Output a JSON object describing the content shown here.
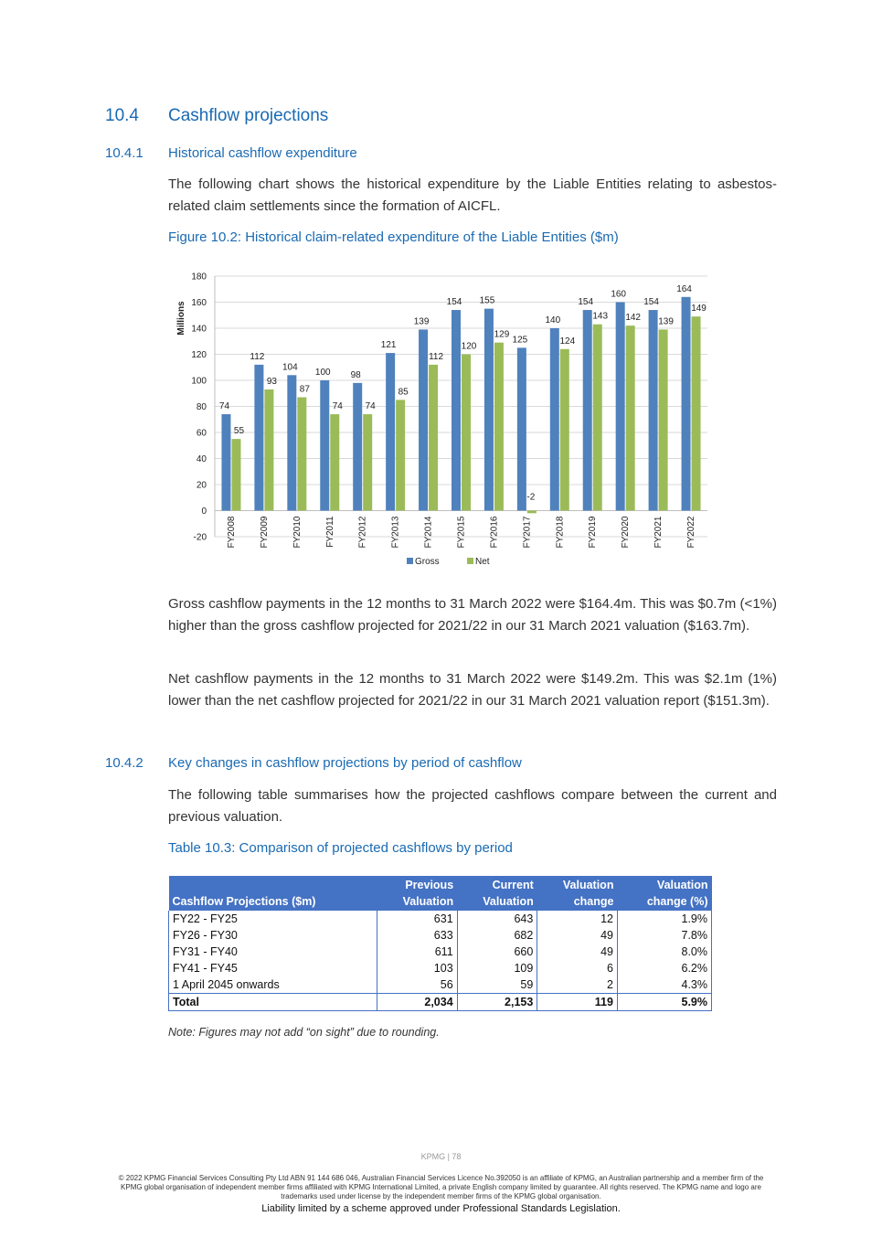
{
  "section": {
    "number": "10.4",
    "title": "Cashflow projections"
  },
  "sub1": {
    "number": "10.4.1",
    "title": "Historical cashflow expenditure",
    "intro": "The following chart shows the historical expenditure by the Liable Entities relating to asbestos-related claim settlements since the formation of AICFL.",
    "figure_caption": "Figure 10.2: Historical claim-related expenditure of the Liable Entities ($m)",
    "para2": "Gross cashflow payments in the 12 months to 31 March 2022 were $164.4m. This was $0.7m (<1%) higher than the gross cashflow projected for 2021/22 in our 31 March 2021 valuation ($163.7m).",
    "para3": "Net cashflow payments in the 12 months to 31 March 2022 were $149.2m. This was $2.1m (1%) lower than the net cashflow projected for 2021/22 in our 31 March 2021 valuation report ($151.3m)."
  },
  "chart_data": {
    "type": "bar",
    "title": "",
    "ylabel": "Millions",
    "xlabel": "",
    "ylim": [
      -20,
      180
    ],
    "yticks": [
      -20,
      0,
      20,
      40,
      60,
      80,
      100,
      120,
      140,
      160,
      180
    ],
    "grid": true,
    "legend_position": "bottom",
    "categories": [
      "FY2008",
      "FY2009",
      "FY2010",
      "FY2011",
      "FY2012",
      "FY2013",
      "FY2014",
      "FY2015",
      "FY2016",
      "FY2017",
      "FY2018",
      "FY2019",
      "FY2020",
      "FY2021",
      "FY2022"
    ],
    "series": [
      {
        "name": "Gross",
        "color": "#4f81bd",
        "values": [
          74,
          112,
          104,
          100,
          98,
          121,
          139,
          154,
          155,
          125,
          140,
          154,
          160,
          154,
          164
        ]
      },
      {
        "name": "Net",
        "color": "#9bbb59",
        "values": [
          55,
          93,
          87,
          74,
          74,
          85,
          112,
          120,
          129,
          -2,
          124,
          143,
          142,
          139,
          149
        ]
      }
    ],
    "negative_label_color": "#e00000"
  },
  "sub2": {
    "number": "10.4.2",
    "title": "Key changes in cashflow projections by period of cashflow",
    "intro": "The following table summarises how the projected cashflows compare between the current and previous valuation.",
    "table_caption": "Table 10.3: Comparison of projected cashflows by period",
    "table": {
      "headers": [
        {
          "line1": "",
          "line2": "Cashflow Projections ($m)"
        },
        {
          "line1": "Previous",
          "line2": "Valuation"
        },
        {
          "line1": "Current",
          "line2": "Valuation"
        },
        {
          "line1": "Valuation",
          "line2": "change"
        },
        {
          "line1": "Valuation",
          "line2": "change (%)"
        }
      ],
      "rows": [
        [
          "FY22 - FY25",
          "631",
          "643",
          "12",
          "1.9%"
        ],
        [
          "FY26 - FY30",
          "633",
          "682",
          "49",
          "7.8%"
        ],
        [
          "FY31 - FY40",
          "611",
          "660",
          "49",
          "8.0%"
        ],
        [
          "FY41 - FY45",
          "103",
          "109",
          "6",
          "6.2%"
        ],
        [
          "1 April 2045 onwards",
          "56",
          "59",
          "2",
          "4.3%"
        ]
      ],
      "total": [
        "Total",
        "2,034",
        "2,153",
        "119",
        "5.9%"
      ]
    },
    "note": "Note: Figures may not add “on sight” due to rounding."
  },
  "footer": {
    "page": "KPMG  |  78",
    "copyright": "© 2022 KPMG Financial Services Consulting Pty Ltd ABN 91 144 686 046, Australian Financial Services Licence No.392050 is an affiliate of KPMG, an Australian partnership and a member firm of the KPMG global organisation of independent member firms affiliated with KPMG International Limited, a private English company limited by guarantee. All rights reserved. The KPMG name and logo are trademarks used under license by the independent member  firms of the KPMG global organisation.",
    "liability": "Liability limited by a scheme approved under Professional Standards Legislation."
  }
}
